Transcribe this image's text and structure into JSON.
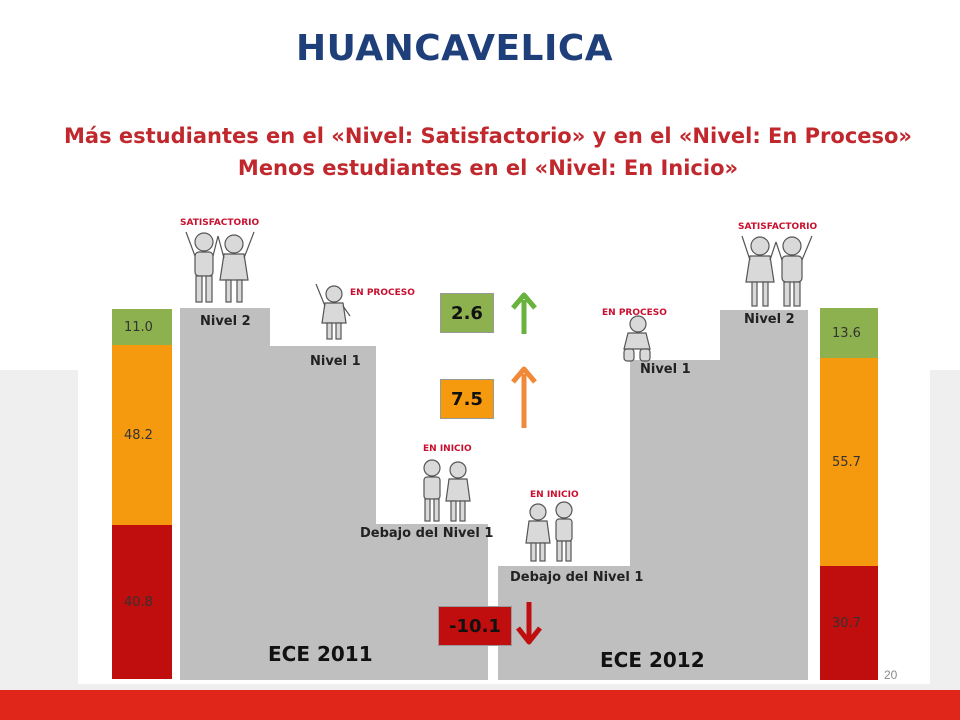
{
  "title": "HUANCAVELICA",
  "subtitle_line1": "Más estudiantes en el «Nivel: Satisfactorio» y en el «Nivel: En Proceso»",
  "subtitle_line2": "Menos estudiantes en el «Nivel: En Inicio»",
  "page_number": "20",
  "colors": {
    "title": "#1f3f7a",
    "subtitle": "#c0282d",
    "satisfactorio": "#8db14f",
    "en_proceso": "#f59a0f",
    "en_inicio": "#c00d0d",
    "steps": "#bfbfbf",
    "bottom_bar": "#e0251b"
  },
  "ece_2011": {
    "label": "ECE 2011",
    "nivel2_label": "Nivel 2",
    "nivel1_label": "Nivel 1",
    "debajo_label": "Debajo del Nivel 1",
    "bar": [
      {
        "name": "Nivel 2",
        "value": 11.0,
        "display": "11.0"
      },
      {
        "name": "Nivel 1",
        "value": 48.2,
        "display": "48.2"
      },
      {
        "name": "Debajo del Nivel 1",
        "value": 40.8,
        "display": "40.8"
      }
    ]
  },
  "ece_2012": {
    "label": "ECE 2012",
    "nivel2_label": "Nivel 2",
    "nivel1_label": "Nivel 1",
    "debajo_label": "Debajo del Nivel 1",
    "bar": [
      {
        "name": "Nivel 2",
        "value": 13.6,
        "display": "13.6"
      },
      {
        "name": "Nivel 1",
        "value": 55.7,
        "display": "55.7"
      },
      {
        "name": "Debajo del Nivel 1",
        "value": 30.7,
        "display": "30.7"
      }
    ]
  },
  "tags": {
    "satisfactorio": "SATISFACTORIO",
    "en_proceso": "EN PROCESO",
    "en_inicio": "EN INICIO"
  },
  "changes": [
    {
      "name": "Nivel 2",
      "value": 2.6,
      "display": "2.6",
      "direction": "up"
    },
    {
      "name": "Nivel 1",
      "value": 7.5,
      "display": "7.5",
      "direction": "up"
    },
    {
      "name": "Debajo del Nivel 1",
      "value": -10.1,
      "display": "-10.1",
      "direction": "down"
    }
  ]
}
